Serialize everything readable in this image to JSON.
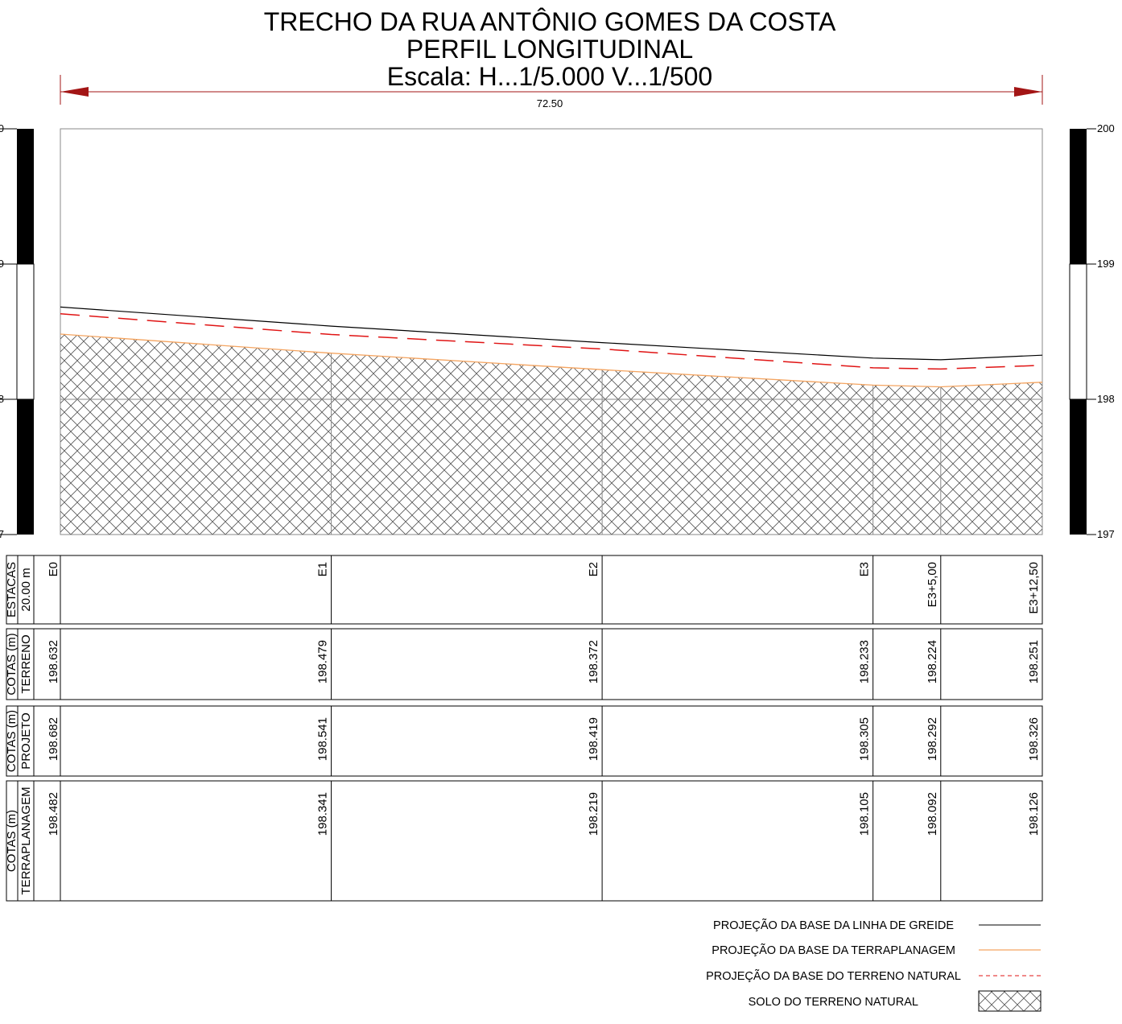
{
  "title": {
    "line1": "TRECHO DA RUA ANTÔNIO GOMES DA COSTA",
    "line2": "PERFIL LONGITUDINAL",
    "line3": "Escala: H...1/5.000  V...1/500"
  },
  "dimension": {
    "label": "72.50",
    "value": 72.5
  },
  "scale_bar": {
    "ticks": [
      {
        "value": 200,
        "left_label": "0",
        "right_label": "200"
      },
      {
        "value": 199,
        "left_label": "9",
        "right_label": "199"
      },
      {
        "value": 198,
        "left_label": "8",
        "right_label": "198"
      },
      {
        "value": 197,
        "left_label": "7",
        "right_label": "197"
      }
    ]
  },
  "chart_data": {
    "type": "line",
    "x_range": [
      0,
      72.5
    ],
    "y_range": [
      197,
      200
    ],
    "stations": [
      {
        "name": "E0",
        "x": 0
      },
      {
        "name": "E1",
        "x": 20
      },
      {
        "name": "E2",
        "x": 40
      },
      {
        "name": "E3",
        "x": 60
      },
      {
        "name": "E3+5,00",
        "x": 65
      },
      {
        "name": "E3+12,50",
        "x": 72.5
      }
    ],
    "series": [
      {
        "key": "greide",
        "x": [
          0,
          20,
          40,
          60,
          65,
          72.5
        ],
        "y": [
          198.682,
          198.541,
          198.419,
          198.305,
          198.292,
          198.326
        ]
      },
      {
        "key": "terreno",
        "x": [
          0,
          20,
          40,
          60,
          65,
          72.5
        ],
        "y": [
          198.632,
          198.479,
          198.372,
          198.233,
          198.224,
          198.251
        ]
      },
      {
        "key": "terraplanagem",
        "x": [
          0,
          20,
          40,
          60,
          65,
          72.5
        ],
        "y": [
          198.482,
          198.341,
          198.219,
          198.105,
          198.092,
          198.126
        ]
      }
    ],
    "gridline_y": 198,
    "grid": false
  },
  "table": {
    "rows": [
      {
        "key": "estacas",
        "header_outer": "ESTACAS",
        "header_inner": "20.00 m",
        "values": [
          "E0",
          "E1",
          "E2",
          "E3",
          "E3+5,00",
          "E3+12,50"
        ]
      },
      {
        "key": "terreno",
        "header_outer": "COTAS (m)",
        "header_inner": "TERRENO",
        "values": [
          "198.632",
          "198.479",
          "198.372",
          "198.233",
          "198.224",
          "198.251"
        ]
      },
      {
        "key": "projeto",
        "header_outer": "COTAS (m)",
        "header_inner": "PROJETO",
        "values": [
          "198.682",
          "198.541",
          "198.419",
          "198.305",
          "198.292",
          "198.326"
        ]
      },
      {
        "key": "terraplanagem",
        "header_outer": "COTAS (m)",
        "header_inner": "TERRAPLANAGEM",
        "values": [
          "198.482",
          "198.341",
          "198.219",
          "198.105",
          "198.092",
          "198.126"
        ]
      }
    ]
  },
  "legend": {
    "items": [
      {
        "key": "greide",
        "label": "PROJEÇÃO DA BASE DA LINHA DE GREIDE"
      },
      {
        "key": "terraplanagem",
        "label": "PROJEÇÃO DA BASE DA TERRAPLANAGEM"
      },
      {
        "key": "terreno",
        "label": "PROJEÇÃO DA BASE DO TERRENO NATURAL"
      },
      {
        "key": "solo",
        "label": "SOLO DO TERRENO NATURAL"
      }
    ]
  },
  "colors": {
    "greide": "#000000",
    "terraplanagem": "#f4a460",
    "terreno": "#e01414",
    "dimension": "#a31515",
    "hatch": "#555555",
    "frame": "#8a8a8a"
  }
}
